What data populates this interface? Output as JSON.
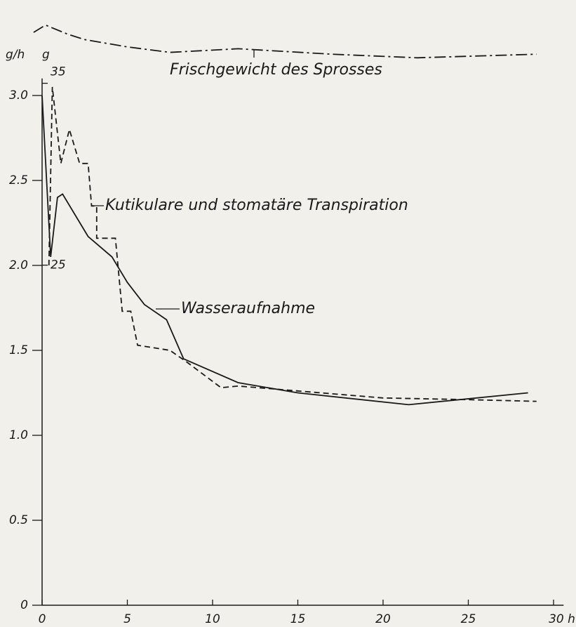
{
  "chart_data": {
    "type": "line",
    "ylabel": "g/h",
    "y2label": "g",
    "xlim": [
      0,
      31
    ],
    "xticks": [
      0,
      5,
      10,
      15,
      20,
      25,
      {
        "value": 30,
        "label": "30 h"
      }
    ],
    "ylim": [
      0,
      3.5
    ],
    "yticks": [
      0,
      0.5,
      {
        "value": 1.0,
        "label": "1.0"
      },
      1.5,
      {
        "value": 2.0,
        "label": "2.0"
      },
      2.5,
      {
        "value": 3.0,
        "label": "3.0"
      }
    ],
    "y2lim": [
      6.3,
      39.0
    ],
    "y2ticks": [
      25,
      35
    ],
    "grid": false,
    "series": [
      {
        "name": "Frischgewicht des Sprosses",
        "color": "#1a1a1a",
        "style": "dashdot",
        "axis": "y2",
        "x": [
          -0.5,
          0.2,
          1.5,
          2.5,
          5,
          7.5,
          11.5,
          17,
          22,
          29
        ],
        "values": [
          37.8,
          38.2,
          37.7,
          37.4,
          37.0,
          36.7,
          36.9,
          36.6,
          36.4,
          36.6
        ]
      },
      {
        "name": "Kutikulare und stomatäre Transpiration",
        "color": "#1a1a1a",
        "style": "dashed",
        "x": [
          0.4,
          0.6,
          1.1,
          1.6,
          2.2,
          2.7,
          2.9,
          3.2,
          3.2,
          4.3,
          4.7,
          5.2,
          5.6,
          7.5,
          8.5,
          10.5,
          11.5,
          20,
          25,
          29
        ],
        "values": [
          2.0,
          3.05,
          2.6,
          2.8,
          2.6,
          2.6,
          2.35,
          2.35,
          2.16,
          2.16,
          1.73,
          1.73,
          1.53,
          1.5,
          1.43,
          1.28,
          1.29,
          1.22,
          1.21,
          1.2
        ]
      },
      {
        "name": "Wasseraufnahme",
        "color": "#1a1a1a",
        "style": "solid",
        "x": [
          0,
          0.5,
          0.9,
          1.2,
          2.7,
          4.1,
          5,
          6,
          7.3,
          8.3,
          11.5,
          15,
          21.5,
          28.5
        ],
        "values": [
          3.0,
          2.05,
          2.4,
          2.42,
          2.17,
          2.05,
          1.9,
          1.77,
          1.68,
          1.45,
          1.31,
          1.25,
          1.18,
          1.25
        ]
      }
    ]
  }
}
